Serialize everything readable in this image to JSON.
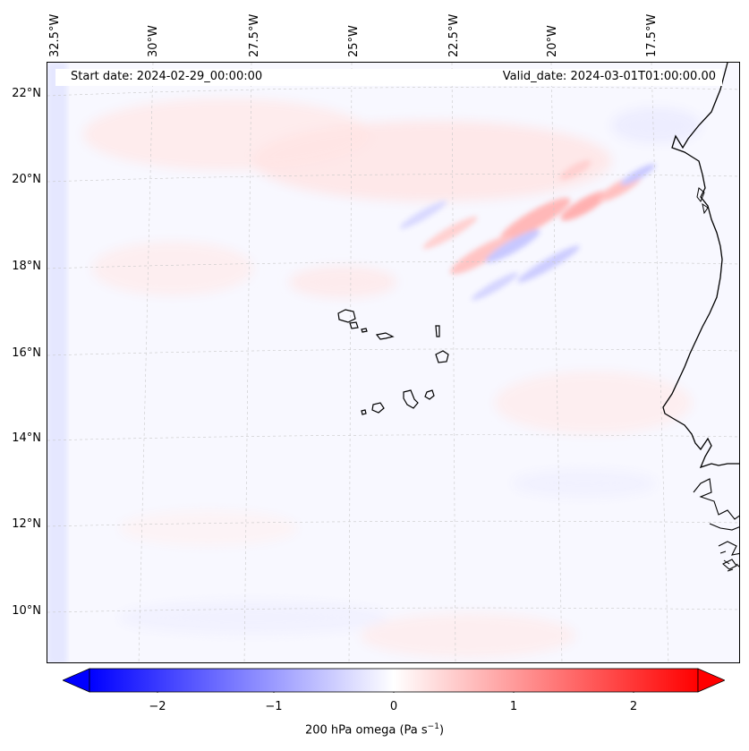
{
  "map": {
    "start_date_text": "Start date: 2024-02-29_00:00:00",
    "valid_date_text": "Valid_date: 2024-03-01T01:00:00.00",
    "lon_labels": [
      "32.5°W",
      "30°W",
      "27.5°W",
      "25°W",
      "22.5°W",
      "20°W",
      "17.5°W"
    ],
    "lat_labels": [
      "22°N",
      "20°N",
      "18°N",
      "16°N",
      "14°N",
      "12°N",
      "10°N"
    ],
    "colors": {
      "background": "#f8f8ff",
      "positive": "#ff0000",
      "negative": "#0000ff"
    }
  },
  "colorbar": {
    "ticks": [
      "−2",
      "−1",
      "0",
      "1",
      "2"
    ],
    "title_main": "200 hPa omega (Pa s",
    "title_sup": "−1",
    "title_end": ")",
    "min": -2.5,
    "max": 2.5
  }
}
